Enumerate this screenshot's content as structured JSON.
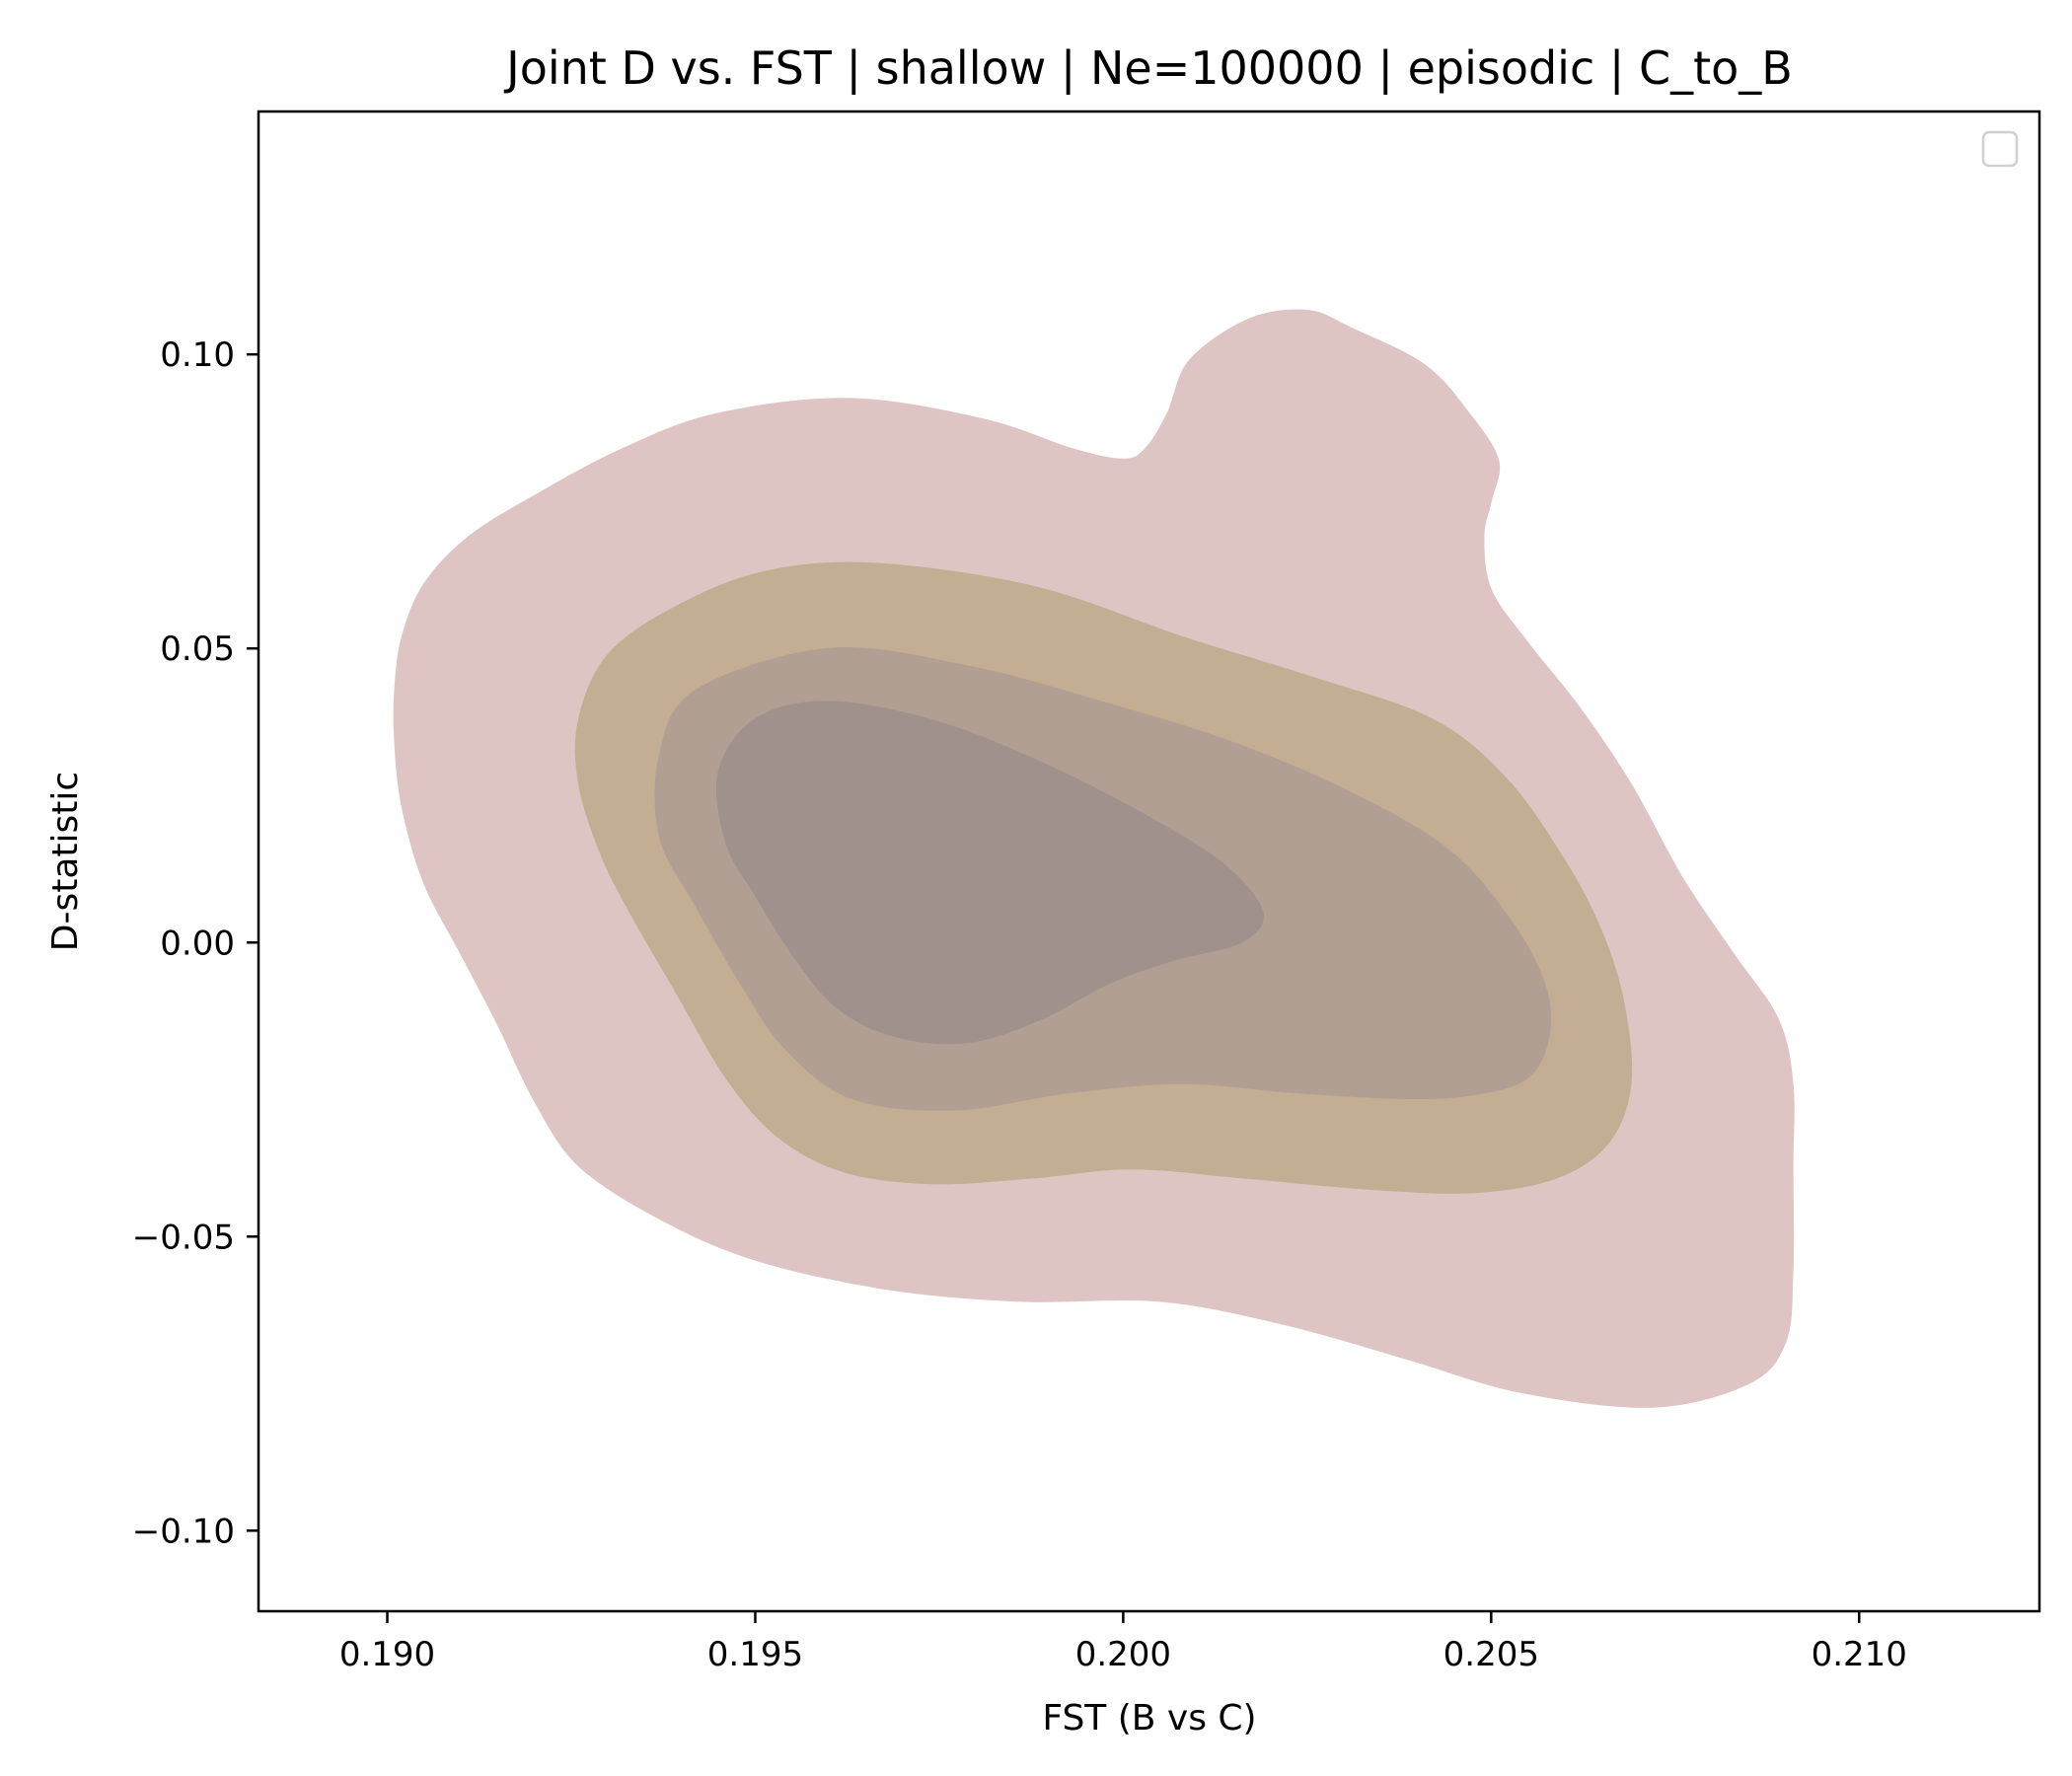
{
  "chart_data": {
    "type": "kde_contour",
    "title": "Joint D vs. FST | shallow | Ne=100000 | episodic | C_to_B",
    "xlabel": "FST (B vs C)",
    "ylabel": "D-statistic",
    "xlim": [
      0.18825,
      0.21245
    ],
    "ylim": [
      -0.1137,
      0.1413
    ],
    "xticks": [
      0.19,
      0.195,
      0.2,
      0.205,
      0.21
    ],
    "xtick_labels": [
      "0.190",
      "0.195",
      "0.200",
      "0.205",
      "0.210"
    ],
    "yticks": [
      -0.1,
      -0.05,
      0.0,
      0.05,
      0.1
    ],
    "ytick_labels": [
      "−0.10",
      "−0.05",
      "0.00",
      "0.05",
      "0.10"
    ],
    "grid": false,
    "legend": {
      "placement": "upper right",
      "entries": []
    },
    "levels": [
      {
        "level": 1,
        "color": "#dfc4c4",
        "points": [
          [
            0.2031,
            0.1045
          ],
          [
            0.2041,
            0.0982
          ],
          [
            0.2047,
            0.09
          ],
          [
            0.2051,
            0.082
          ],
          [
            0.205,
            0.075
          ],
          [
            0.2049,
            0.069
          ],
          [
            0.205,
            0.06
          ],
          [
            0.2055,
            0.051
          ],
          [
            0.2062,
            0.04
          ],
          [
            0.2069,
            0.027
          ],
          [
            0.2076,
            0.011
          ],
          [
            0.2083,
            -0.002
          ],
          [
            0.2089,
            -0.013
          ],
          [
            0.2091,
            -0.024
          ],
          [
            0.2091,
            -0.038
          ],
          [
            0.2091,
            -0.056
          ],
          [
            0.209,
            -0.068
          ],
          [
            0.2085,
            -0.075
          ],
          [
            0.2072,
            -0.079
          ],
          [
            0.2054,
            -0.0765
          ],
          [
            0.2039,
            -0.071
          ],
          [
            0.2022,
            -0.065
          ],
          [
            0.2005,
            -0.061
          ],
          [
            0.1986,
            -0.061
          ],
          [
            0.1968,
            -0.059
          ],
          [
            0.195,
            -0.054
          ],
          [
            0.1937,
            -0.047
          ],
          [
            0.1926,
            -0.038
          ],
          [
            0.192,
            -0.027
          ],
          [
            0.1915,
            -0.014
          ],
          [
            0.191,
            -0.002
          ],
          [
            0.1905,
            0.01
          ],
          [
            0.1902,
            0.023
          ],
          [
            0.1901,
            0.034
          ],
          [
            0.1901,
            0.043
          ],
          [
            0.1902,
            0.052
          ],
          [
            0.1905,
            0.061
          ],
          [
            0.1911,
            0.069
          ],
          [
            0.192,
            0.076
          ],
          [
            0.1932,
            0.084
          ],
          [
            0.1945,
            0.09
          ],
          [
            0.1963,
            0.0925
          ],
          [
            0.1981,
            0.089
          ],
          [
            0.1993,
            0.084
          ],
          [
            0.2,
            0.0822
          ],
          [
            0.2003,
            0.084
          ],
          [
            0.2006,
            0.09
          ],
          [
            0.2009,
            0.099
          ],
          [
            0.2017,
            0.106
          ],
          [
            0.2025,
            0.1075
          ]
        ]
      },
      {
        "level": 2,
        "color": "#c3ae93",
        "points": [
          [
            0.1966,
            0.0645
          ],
          [
            0.1988,
            0.0605
          ],
          [
            0.2008,
            0.052
          ],
          [
            0.2026,
            0.045
          ],
          [
            0.2042,
            0.038
          ],
          [
            0.2052,
            0.028
          ],
          [
            0.206,
            0.014
          ],
          [
            0.2065,
            0.002
          ],
          [
            0.2068,
            -0.01
          ],
          [
            0.2069,
            -0.024
          ],
          [
            0.2066,
            -0.034
          ],
          [
            0.2059,
            -0.04
          ],
          [
            0.2048,
            -0.0425
          ],
          [
            0.2034,
            -0.042
          ],
          [
            0.2016,
            -0.04
          ],
          [
            0.2001,
            -0.0385
          ],
          [
            0.1988,
            -0.04
          ],
          [
            0.1974,
            -0.041
          ],
          [
            0.1962,
            -0.039
          ],
          [
            0.1953,
            -0.033
          ],
          [
            0.1946,
            -0.023
          ],
          [
            0.1939,
            -0.008
          ],
          [
            0.1933,
            0.005
          ],
          [
            0.1929,
            0.015
          ],
          [
            0.1926,
            0.027
          ],
          [
            0.1926,
            0.038
          ],
          [
            0.193,
            0.049
          ],
          [
            0.1939,
            0.057
          ],
          [
            0.1951,
            0.063
          ]
        ]
      },
      {
        "level": 3,
        "color": "#b29f93",
        "points": [
          [
            0.196,
            0.05
          ],
          [
            0.1979,
            0.047
          ],
          [
            0.1997,
            0.041
          ],
          [
            0.2015,
            0.034
          ],
          [
            0.2031,
            0.0255
          ],
          [
            0.2044,
            0.016
          ],
          [
            0.2052,
            0.005
          ],
          [
            0.2057,
            -0.006
          ],
          [
            0.2058,
            -0.015
          ],
          [
            0.2055,
            -0.023
          ],
          [
            0.2047,
            -0.026
          ],
          [
            0.2037,
            -0.0265
          ],
          [
            0.2023,
            -0.0255
          ],
          [
            0.2008,
            -0.024
          ],
          [
            0.1993,
            -0.0255
          ],
          [
            0.1977,
            -0.0285
          ],
          [
            0.1963,
            -0.0265
          ],
          [
            0.1954,
            -0.018
          ],
          [
            0.1948,
            -0.007
          ],
          [
            0.1942,
            0.006
          ],
          [
            0.1937,
            0.018
          ],
          [
            0.1937,
            0.032
          ],
          [
            0.1942,
            0.043
          ]
        ]
      },
      {
        "level": 4,
        "color": "#a1918c",
        "points": [
          [
            0.196,
            0.041
          ],
          [
            0.1975,
            0.0375
          ],
          [
            0.199,
            0.03
          ],
          [
            0.2004,
            0.021
          ],
          [
            0.2014,
            0.013
          ],
          [
            0.2019,
            0.005
          ],
          [
            0.2016,
            0.0
          ],
          [
            0.2007,
            -0.003
          ],
          [
            0.1998,
            -0.007
          ],
          [
            0.1989,
            -0.013
          ],
          [
            0.1979,
            -0.017
          ],
          [
            0.1969,
            -0.016
          ],
          [
            0.1961,
            -0.011
          ],
          [
            0.1955,
            -0.002
          ],
          [
            0.195,
            0.008
          ],
          [
            0.1946,
            0.017
          ],
          [
            0.1945,
            0.029
          ],
          [
            0.195,
            0.038
          ]
        ]
      }
    ]
  }
}
